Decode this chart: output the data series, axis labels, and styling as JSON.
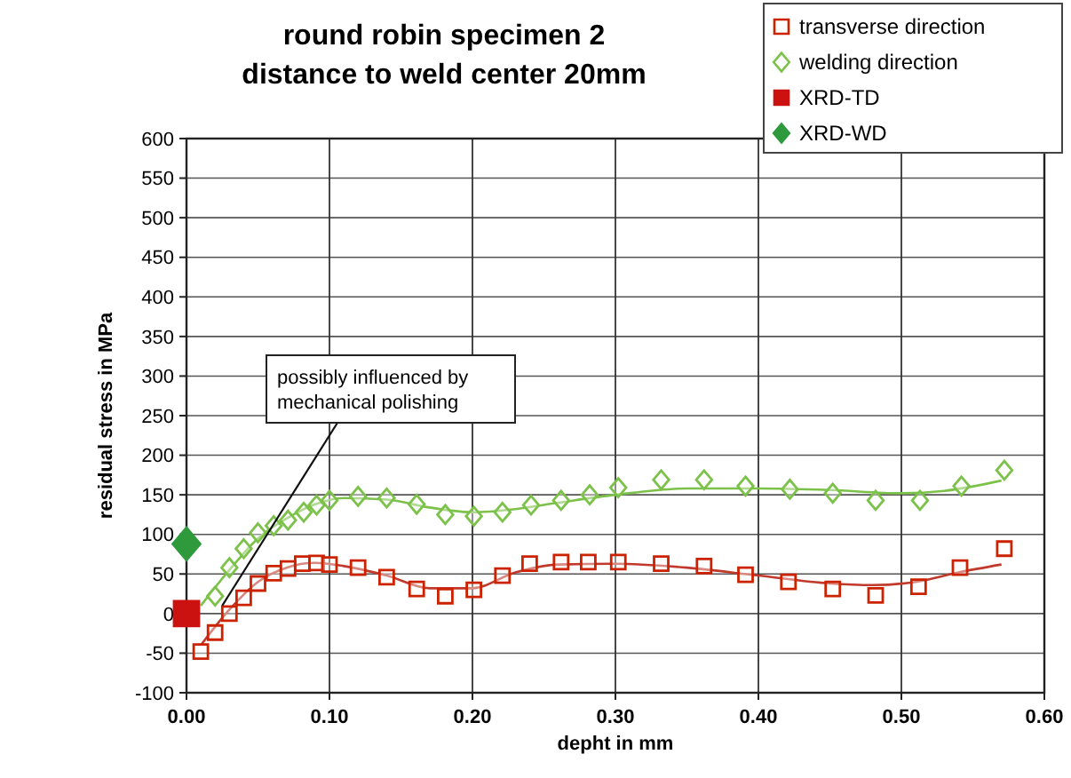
{
  "chart_data": {
    "type": "scatter",
    "title": "round robin specimen 2\ndistance to weld center 20mm",
    "xlabel": "depht in mm",
    "ylabel": "residual stress in MPa",
    "xlim": [
      0,
      0.6
    ],
    "xticks": [
      {
        "value": 0,
        "label": "0.00"
      },
      {
        "value": 0.1,
        "label": "0.10"
      },
      {
        "value": 0.2,
        "label": "0.20"
      },
      {
        "value": 0.3,
        "label": "0.30"
      },
      {
        "value": 0.4,
        "label": "0.40"
      },
      {
        "value": 0.5,
        "label": "0.50"
      },
      {
        "value": 0.6,
        "label": "0.60"
      }
    ],
    "ylim": [
      -100,
      600
    ],
    "yticks": [
      -100,
      -50,
      0,
      50,
      100,
      150,
      200,
      250,
      300,
      350,
      400,
      450,
      500,
      550,
      600
    ],
    "grid": true,
    "legend": "top right",
    "annotations": [
      {
        "text": "possibly influenced by\nmechanical polishing",
        "x": 0.025,
        "y": 10
      }
    ],
    "series": [
      {
        "type": "line",
        "color": "#c0392b",
        "marker": "none",
        "x": [
          0.01,
          0.03,
          0.05,
          0.07,
          0.09,
          0.11,
          0.14,
          0.17,
          0.2,
          0.23,
          0.26,
          0.3,
          0.35,
          0.4,
          0.45,
          0.48,
          0.51,
          0.54,
          0.57
        ],
        "values": [
          -40,
          5,
          40,
          58,
          64,
          60,
          48,
          32,
          32,
          52,
          62,
          63,
          58,
          48,
          38,
          36,
          40,
          52,
          62
        ]
      },
      {
        "type": "line",
        "color": "#7cc24a",
        "marker": "none",
        "x": [
          0.01,
          0.03,
          0.05,
          0.07,
          0.09,
          0.11,
          0.14,
          0.17,
          0.2,
          0.23,
          0.26,
          0.3,
          0.35,
          0.4,
          0.45,
          0.5,
          0.53,
          0.57
        ],
        "values": [
          10,
          55,
          95,
          120,
          138,
          146,
          144,
          134,
          128,
          132,
          140,
          150,
          158,
          158,
          156,
          152,
          155,
          168
        ]
      },
      {
        "name": "transverse direction",
        "color": "#cc2200",
        "marker": "square",
        "x": [
          0.01,
          0.02,
          0.03,
          0.04,
          0.05,
          0.061,
          0.071,
          0.081,
          0.091,
          0.1,
          0.12,
          0.14,
          0.161,
          0.181,
          0.201,
          0.221,
          0.24,
          0.262,
          0.281,
          0.302,
          0.332,
          0.362,
          0.391,
          0.421,
          0.452,
          0.482,
          0.512,
          0.541,
          0.572
        ],
        "values": [
          -48,
          -24,
          0,
          20,
          38,
          51,
          57,
          63,
          64,
          62,
          58,
          46,
          31,
          22,
          30,
          48,
          63,
          65,
          65,
          65,
          63,
          60,
          49,
          40,
          31,
          23,
          34,
          58,
          82
        ]
      },
      {
        "name": "welding direction",
        "color": "#7cc24a",
        "marker": "diamond",
        "x": [
          0.02,
          0.03,
          0.04,
          0.05,
          0.061,
          0.071,
          0.082,
          0.091,
          0.1,
          0.12,
          0.14,
          0.161,
          0.181,
          0.201,
          0.221,
          0.241,
          0.262,
          0.282,
          0.302,
          0.332,
          0.362,
          0.391,
          0.422,
          0.452,
          0.482,
          0.513,
          0.542,
          0.572
        ],
        "values": [
          22,
          58,
          82,
          102,
          111,
          118,
          128,
          137,
          143,
          148,
          146,
          138,
          125,
          123,
          128,
          137,
          143,
          150,
          159,
          169,
          169,
          161,
          157,
          152,
          143,
          143,
          161,
          181
        ]
      },
      {
        "name": "XRD-TD",
        "color": "#cc1111",
        "marker": "square",
        "x": [
          0
        ],
        "values": [
          0
        ]
      },
      {
        "name": "XRD-WD",
        "color": "#2e9a3c",
        "marker": "diamond",
        "x": [
          0
        ],
        "values": [
          88
        ]
      }
    ]
  }
}
